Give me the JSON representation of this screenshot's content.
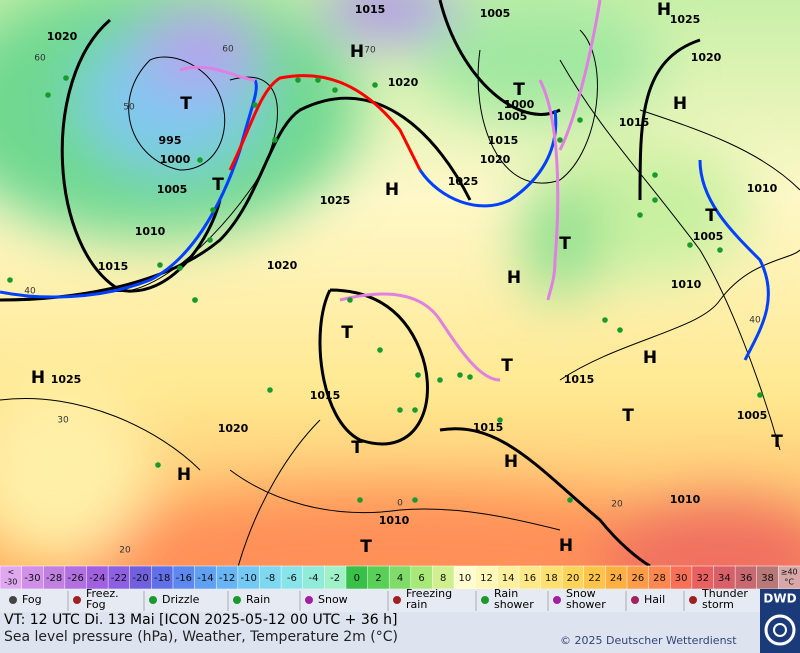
{
  "map": {
    "pressure_centers": [
      "H",
      "T",
      "T",
      "H",
      "T",
      "H",
      "H",
      "T",
      "T",
      "H",
      "T",
      "H",
      "H",
      "T",
      "T",
      "T",
      "H",
      "H",
      "T",
      "H",
      "T"
    ],
    "isobar_labels": [
      "1015",
      "1005",
      "1025",
      "1020",
      "1020",
      "1020",
      "1000",
      "1005",
      "1015",
      "1015",
      "1020",
      "995",
      "1000",
      "1005",
      "1025",
      "1025",
      "1010",
      "1010",
      "1005",
      "1015",
      "1020",
      "1010",
      "1025",
      "1015",
      "1015",
      "1005",
      "1020",
      "1015",
      "1010",
      "1010"
    ],
    "temperature_labels": [
      "60",
      "60",
      "70",
      "50",
      "40",
      "30",
      "20",
      "0",
      "20",
      "40"
    ]
  },
  "color_scale": {
    "labels": [
      [
        "<",
        "-30"
      ],
      [
        "-30"
      ],
      [
        "-28"
      ],
      [
        "-26"
      ],
      [
        "-24"
      ],
      [
        "-22"
      ],
      [
        "-20"
      ],
      [
        "-18"
      ],
      [
        "-16"
      ],
      [
        "-14"
      ],
      [
        "-12"
      ],
      [
        "-10"
      ],
      [
        "-8"
      ],
      [
        "-6"
      ],
      [
        "-4"
      ],
      [
        "-2"
      ],
      [
        "0"
      ],
      [
        "2"
      ],
      [
        "4"
      ],
      [
        "6"
      ],
      [
        "8"
      ],
      [
        "10"
      ],
      [
        "12"
      ],
      [
        "14"
      ],
      [
        "16"
      ],
      [
        "18"
      ],
      [
        "20"
      ],
      [
        "22"
      ],
      [
        "24"
      ],
      [
        "26"
      ],
      [
        "28"
      ],
      [
        "30"
      ],
      [
        "32"
      ],
      [
        "34"
      ],
      [
        "36"
      ],
      [
        "38"
      ],
      [
        "≥40",
        "°C"
      ]
    ],
    "colors": [
      "#e0a8f0",
      "#d090e8",
      "#c080e0",
      "#b070e0",
      "#a060e0",
      "#8c60e0",
      "#7060e0",
      "#6070e8",
      "#5c88f0",
      "#60a0f0",
      "#68b4f4",
      "#74c8f4",
      "#80d8f0",
      "#88e4e8",
      "#90ecd8",
      "#a0f0c8",
      "#38c048",
      "#58d058",
      "#80dc68",
      "#a8e878",
      "#d0f090",
      "#fffcd0",
      "#fff8b8",
      "#fff0a0",
      "#ffe888",
      "#ffe070",
      "#ffd458",
      "#ffc448",
      "#ffb040",
      "#ff9c48",
      "#ff8850",
      "#f87058",
      "#e86060",
      "#d86068",
      "#c86870",
      "#b87878",
      "#d8a8a8"
    ]
  },
  "legend": [
    [
      "Fog"
    ],
    [
      "Freez.",
      "Fog"
    ],
    [
      "Drizzle"
    ],
    [
      "Rain"
    ],
    [
      "Snow"
    ],
    [
      "Freezing",
      "rain"
    ],
    [
      "Rain",
      "shower"
    ],
    [
      "Snow",
      "shower"
    ],
    [
      "Hail"
    ],
    [
      "Thunder",
      "storm"
    ]
  ],
  "footer": {
    "valid_time": "VT: 12 UTC Di.  13 Mai [ICON 2025-05-12  00 UTC + 36 h]",
    "description": "Sea level pressure (hPa), Weather, Temperature 2m (°C)",
    "copyright": "© 2025 Deutscher Wetterdienst",
    "logo": "DWD"
  }
}
